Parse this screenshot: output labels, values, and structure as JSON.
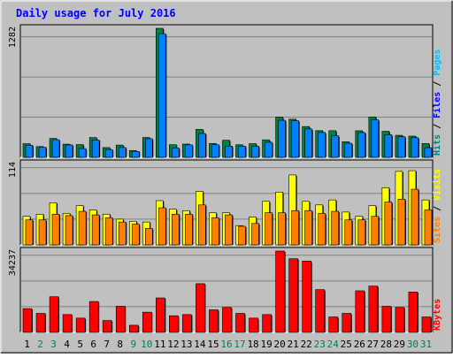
{
  "chart_data": {
    "type": "bar",
    "title": "Daily usage for July 2016",
    "categories": [
      "1",
      "2",
      "3",
      "4",
      "5",
      "6",
      "7",
      "8",
      "9",
      "10",
      "11",
      "12",
      "13",
      "14",
      "15",
      "16",
      "17",
      "18",
      "19",
      "20",
      "21",
      "22",
      "23",
      "24",
      "25",
      "26",
      "27",
      "28",
      "29",
      "30",
      "31"
    ],
    "weekend_days": [
      "2",
      "3",
      "9",
      "10",
      "16",
      "17",
      "23",
      "24",
      "30",
      "31"
    ],
    "panels": [
      {
        "id": "hits",
        "ymax_label": "1282",
        "ylim": [
          0,
          1282
        ],
        "series": [
          {
            "name": "Hits",
            "color": "#008040",
            "values": [
              136,
              107,
              188,
              131,
              127,
              197,
              97,
              122,
              68,
              197,
              1282,
              126,
              132,
              278,
              138,
              170,
              125,
              136,
              174,
              400,
              379,
              306,
              265,
              265,
              155,
              264,
              402,
              259,
              219,
              211,
              137
            ]
          },
          {
            "name": "Files",
            "color": "#0080FF",
            "values": [
              120,
              100,
              175,
              123,
              87,
              173,
              77,
              98,
              59,
              185,
              1228,
              93,
              124,
              237,
              125,
              112,
              111,
              110,
              150,
              368,
              364,
              282,
              247,
              214,
              140,
              246,
              373,
              225,
              205,
              195,
              96
            ]
          },
          {
            "name": "Pages",
            "color": "#00C0FF",
            "values": [],
            "note": ""
          }
        ],
        "legend": [
          {
            "label": "Hits",
            "color": "#008080"
          },
          {
            "label": "Files",
            "color": "#0000FF"
          },
          {
            "label": "Pages",
            "color": "#00C0FF"
          }
        ]
      },
      {
        "id": "visits",
        "ymax_label": "114",
        "ylim": [
          0,
          114
        ],
        "series": [
          {
            "name": "Visits",
            "color": "#FFFF00",
            "values": [
              40,
              43,
              59,
              44,
              55,
              49,
              43,
              36,
              33,
              32,
              62,
              50,
              48,
              75,
              45,
              45,
              27,
              39,
              61,
              74,
              98,
              61,
              56,
              63,
              46,
              40,
              55,
              80,
              103,
              104,
              63
            ]
          },
          {
            "name": "Sites",
            "color": "#FF8000",
            "values": [
              35,
              35,
              43,
              41,
              47,
              42,
              38,
              32,
              29,
              23,
              52,
              43,
              43,
              56,
              38,
              42,
              26,
              30,
              45,
              45,
              48,
              48,
              44,
              47,
              35,
              35,
              40,
              60,
              64,
              78,
              49
            ]
          }
        ],
        "legend": [
          {
            "label": "Sites",
            "color": "#FF8000"
          },
          {
            "label": "Visits",
            "color": "#FFFF00"
          }
        ]
      },
      {
        "id": "kbytes",
        "ymax_label": "34237",
        "ylim": [
          0,
          34237
        ],
        "series": [
          {
            "name": "KBytes",
            "color": "#FF0000",
            "values": [
              10000,
              8000,
              15000,
              7500,
              6000,
              13000,
              5000,
              11000,
              3000,
              8500,
              14500,
              7000,
              7500,
              20500,
              9500,
              10500,
              8000,
              6000,
              7500,
              34237,
              31000,
              30000,
              18000,
              6500,
              8000,
              17500,
              19500,
              11000,
              10500,
              17000,
              6500
            ]
          }
        ],
        "legend": [
          {
            "label": "KBytes",
            "color": "#FF0000"
          }
        ]
      }
    ]
  },
  "colors": {
    "background": "#C0C0C0",
    "frame_light": "#FFFFFF",
    "frame_dark": "#000000",
    "gridline": "#808080",
    "title": "#0000FF",
    "day_label": "#000000",
    "weekend_label": "#00804B"
  }
}
